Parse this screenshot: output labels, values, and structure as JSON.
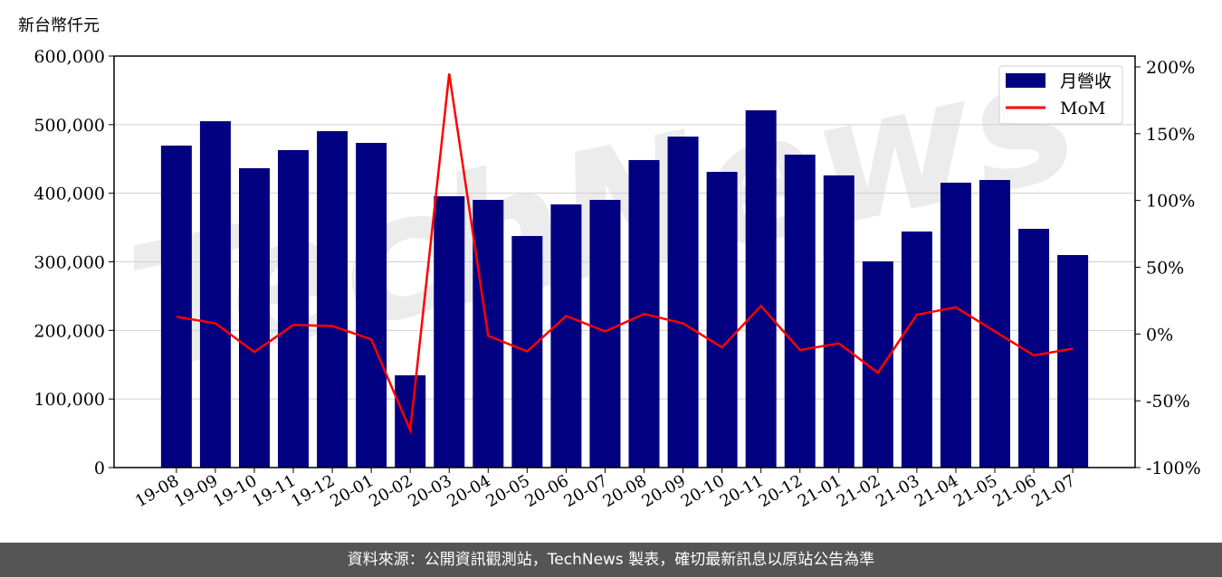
{
  "chart_data": {
    "type": "bar+line",
    "ylabel": "新台幣仟元",
    "categories": [
      "19-08",
      "19-09",
      "19-10",
      "19-11",
      "19-12",
      "20-01",
      "20-02",
      "20-03",
      "20-04",
      "20-05",
      "20-06",
      "20-07",
      "20-08",
      "20-09",
      "20-10",
      "20-11",
      "20-12",
      "21-01",
      "21-02",
      "21-03",
      "21-04",
      "21-05",
      "21-06",
      "21-07"
    ],
    "series": [
      {
        "name": "月營收",
        "type": "bar",
        "axis": "left",
        "color": "#000080",
        "values": [
          469500,
          505000,
          436500,
          462900,
          490500,
          473400,
          134500,
          395600,
          390300,
          337600,
          383700,
          390300,
          448400,
          482600,
          431200,
          520900,
          456300,
          426000,
          300700,
          344200,
          415400,
          419300,
          348100,
          309900
        ]
      },
      {
        "name": "MoM",
        "type": "line",
        "axis": "right",
        "color": "#ff0000",
        "values": [
          12.9,
          8,
          -13.5,
          6.8,
          6,
          -4,
          -72,
          195,
          -1.4,
          -13,
          13.5,
          2,
          15,
          8,
          -10,
          21,
          -12,
          -7,
          -29,
          14.5,
          20,
          2,
          -16,
          -11
        ]
      }
    ],
    "ylim": [
      0,
      600000
    ],
    "yticks": [
      "0",
      "100,000",
      "200,000",
      "300,000",
      "400,000",
      "500,000",
      "600,000"
    ],
    "y2lim": [
      -100,
      200
    ],
    "y2ticks": [
      "-100%",
      "-50%",
      "0%",
      "50%",
      "100%",
      "150%",
      "200%"
    ],
    "grid": true,
    "legend": "top-right"
  },
  "footer": "資料來源：公開資訊觀測站，TechNews 製表，確切最新訊息以原站公告為準",
  "watermark": "TechNews"
}
